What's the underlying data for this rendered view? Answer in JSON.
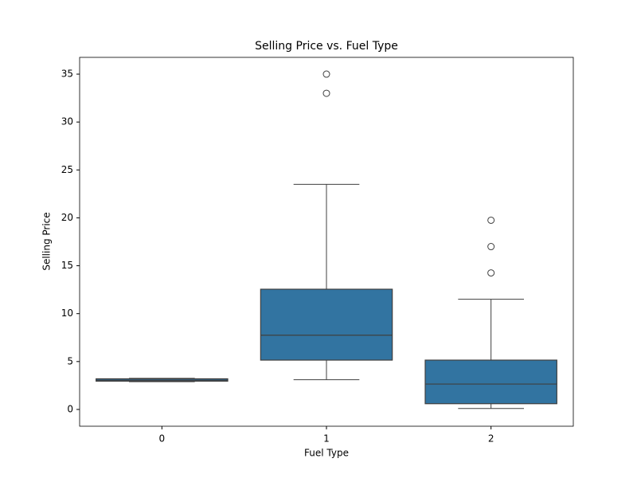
{
  "chart_data": {
    "type": "box",
    "title": "Selling Price vs. Fuel Type",
    "x_label": "Fuel Type",
    "y_label": "Selling Price",
    "categories": [
      "0",
      "1",
      "2"
    ],
    "boxes": [
      {
        "whislo": 2.9,
        "q1": 2.95,
        "med": 3.05,
        "q3": 3.2,
        "whishi": 3.25,
        "fliers": []
      },
      {
        "whislo": 3.1,
        "q1": 5.15,
        "med": 7.75,
        "q3": 12.55,
        "whishi": 23.5,
        "fliers": [
          33,
          35
        ]
      },
      {
        "whislo": 0.1,
        "q1": 0.6,
        "med": 2.65,
        "q3": 5.15,
        "whishi": 11.5,
        "fliers": [
          14.25,
          17,
          19.75
        ]
      }
    ],
    "color": "#3274a1",
    "ylim": [
      -1.75,
      36.75
    ],
    "yticks": [
      0,
      5,
      10,
      15,
      20,
      25,
      30,
      35
    ],
    "grid": false
  }
}
